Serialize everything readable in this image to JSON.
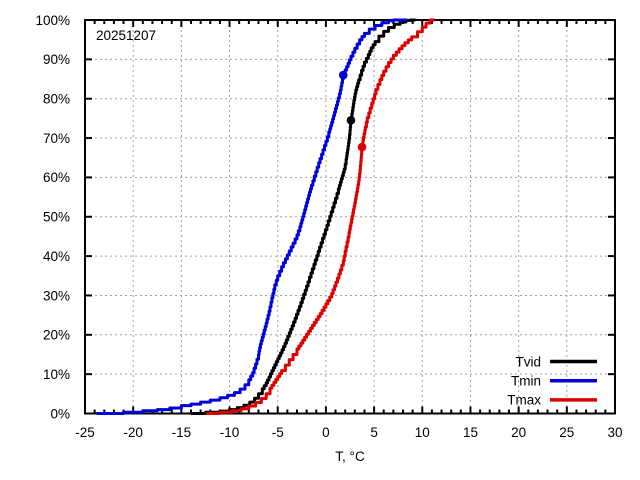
{
  "window": {
    "background": "#ffffff",
    "text_color": "#000000"
  },
  "chart_data": {
    "type": "line",
    "subtype": "empirical-cdf",
    "annotation": "20251207",
    "title": "",
    "xlabel": "T, °C",
    "ylabel": "",
    "x_axis": {
      "min": -25,
      "max": 30,
      "major_step": 5,
      "minor_step": 1,
      "tick_labels": [
        "-25",
        "-20",
        "-15",
        "-10",
        "-5",
        "0",
        "5",
        "10",
        "15",
        "20",
        "25",
        "30"
      ]
    },
    "y_axis": {
      "min": 0,
      "max": 100,
      "major_step": 10,
      "tick_labels": [
        "0%",
        "10%",
        "20%",
        "30%",
        "40%",
        "50%",
        "60%",
        "70%",
        "80%",
        "90%",
        "100%"
      ]
    },
    "grid": {
      "show": true,
      "color": "#a0a0a0",
      "dash": "2,3"
    },
    "border_color": "#000000",
    "legend": {
      "position": "bottom-right",
      "entries": [
        "Tvid",
        "Tmin",
        "Tmax"
      ]
    },
    "series": [
      {
        "name": "Tvid",
        "color": "#000000",
        "marker": {
          "t": 2.6,
          "p": 74.5
        },
        "points": [
          [
            -14,
            0
          ],
          [
            -12.5,
            0.3
          ],
          [
            -11,
            0.6
          ],
          [
            -10,
            1
          ],
          [
            -9.2,
            1.5
          ],
          [
            -8.5,
            2.1
          ],
          [
            -7.9,
            2.9
          ],
          [
            -7.4,
            3.9
          ],
          [
            -7,
            5
          ],
          [
            -6.6,
            6.3
          ],
          [
            -6.2,
            7.8
          ],
          [
            -5.9,
            9.3
          ],
          [
            -5.6,
            10.9
          ],
          [
            -5.3,
            12.4
          ],
          [
            -5,
            13.9
          ],
          [
            -4.7,
            15.4
          ],
          [
            -4.4,
            17
          ],
          [
            -4.1,
            18.7
          ],
          [
            -3.8,
            20.5
          ],
          [
            -3.5,
            22.3
          ],
          [
            -3.2,
            24.2
          ],
          [
            -2.9,
            26.2
          ],
          [
            -2.6,
            28.2
          ],
          [
            -2.3,
            30.3
          ],
          [
            -2,
            32.4
          ],
          [
            -1.7,
            34.6
          ],
          [
            -1.4,
            36.8
          ],
          [
            -1.1,
            39
          ],
          [
            -0.8,
            41.2
          ],
          [
            -0.5,
            43.4
          ],
          [
            -0.2,
            45.6
          ],
          [
            0.1,
            47.8
          ],
          [
            0.4,
            50.1
          ],
          [
            0.7,
            52.4
          ],
          [
            1,
            54.7
          ],
          [
            1.3,
            57.1
          ],
          [
            1.6,
            59.6
          ],
          [
            1.9,
            62.1
          ],
          [
            2.1,
            64.6
          ],
          [
            2.25,
            67.1
          ],
          [
            2.4,
            69.6
          ],
          [
            2.5,
            72
          ],
          [
            2.6,
            74.5
          ],
          [
            2.75,
            77
          ],
          [
            2.9,
            79.6
          ],
          [
            3.1,
            82.2
          ],
          [
            3.4,
            84.8
          ],
          [
            3.7,
            87.2
          ],
          [
            4,
            89.3
          ],
          [
            4.4,
            91.2
          ],
          [
            4.7,
            92.9
          ],
          [
            5.1,
            94.5
          ],
          [
            5.5,
            95.9
          ],
          [
            6,
            97.1
          ],
          [
            6.5,
            98.1
          ],
          [
            7.1,
            98.9
          ],
          [
            7.7,
            99.5
          ],
          [
            8.3,
            99.9
          ],
          [
            8.8,
            100
          ],
          [
            9.3,
            100
          ]
        ]
      },
      {
        "name": "Tmin",
        "color": "#0000dd",
        "marker": {
          "t": 1.8,
          "p": 86
        },
        "points": [
          [
            -23.8,
            0
          ],
          [
            -21,
            0.3
          ],
          [
            -19,
            0.7
          ],
          [
            -17.5,
            1
          ],
          [
            -16.2,
            1.4
          ],
          [
            -15,
            2
          ],
          [
            -14,
            2.4
          ],
          [
            -13,
            2.9
          ],
          [
            -12,
            3.4
          ],
          [
            -11,
            4
          ],
          [
            -10.2,
            4.6
          ],
          [
            -9.5,
            5.3
          ],
          [
            -8.9,
            6.2
          ],
          [
            -8.4,
            7.3
          ],
          [
            -8,
            8.6
          ],
          [
            -7.6,
            10.4
          ],
          [
            -7.3,
            12.6
          ],
          [
            -7,
            15
          ],
          [
            -6.8,
            17.6
          ],
          [
            -6.5,
            20.3
          ],
          [
            -6.2,
            23
          ],
          [
            -5.9,
            26
          ],
          [
            -5.6,
            29.4
          ],
          [
            -5.3,
            32.7
          ],
          [
            -5,
            35
          ],
          [
            -4.6,
            37.3
          ],
          [
            -4.2,
            39.3
          ],
          [
            -3.8,
            41.3
          ],
          [
            -3.4,
            43.3
          ],
          [
            -3,
            45.4
          ],
          [
            -2.7,
            47.5
          ],
          [
            -2.4,
            50
          ],
          [
            -2.1,
            52.7
          ],
          [
            -1.8,
            55.4
          ],
          [
            -1.5,
            58
          ],
          [
            -1.2,
            60.3
          ],
          [
            -0.9,
            62.6
          ],
          [
            -0.6,
            64.8
          ],
          [
            -0.3,
            67
          ],
          [
            0,
            69.2
          ],
          [
            0.3,
            71.5
          ],
          [
            0.6,
            74
          ],
          [
            0.9,
            76.6
          ],
          [
            1.2,
            79.3
          ],
          [
            1.5,
            82.2
          ],
          [
            1.8,
            86
          ],
          [
            2,
            87.3
          ],
          [
            2.3,
            89
          ],
          [
            2.6,
            90.8
          ],
          [
            3,
            92.8
          ],
          [
            3.5,
            95
          ],
          [
            4,
            96.6
          ],
          [
            4.5,
            97.7
          ],
          [
            5.1,
            98.6
          ],
          [
            5.8,
            99.3
          ],
          [
            6.5,
            99.8
          ],
          [
            7,
            100
          ],
          [
            8.4,
            100
          ]
        ]
      },
      {
        "name": "Tmax",
        "color": "#dd0000",
        "marker": {
          "t": 3.75,
          "p": 67.7
        },
        "points": [
          [
            -12.4,
            0
          ],
          [
            -11,
            0.3
          ],
          [
            -9.8,
            0.7
          ],
          [
            -8.8,
            1.2
          ],
          [
            -8,
            1.9
          ],
          [
            -7.3,
            2.8
          ],
          [
            -6.7,
            3.8
          ],
          [
            -6.2,
            5
          ],
          [
            -5.8,
            6.4
          ],
          [
            -5.4,
            7.9
          ],
          [
            -5,
            9.4
          ],
          [
            -4.6,
            10.9
          ],
          [
            -4.2,
            12.3
          ],
          [
            -3.8,
            13.7
          ],
          [
            -3.4,
            15
          ],
          [
            -3,
            16.4
          ],
          [
            -2.6,
            17.9
          ],
          [
            -2.2,
            19.4
          ],
          [
            -1.8,
            20.9
          ],
          [
            -1.4,
            22.4
          ],
          [
            -1,
            23.9
          ],
          [
            -0.6,
            25.4
          ],
          [
            -0.2,
            27
          ],
          [
            0.2,
            28.7
          ],
          [
            0.6,
            30.5
          ],
          [
            0.9,
            32.4
          ],
          [
            1.2,
            34.4
          ],
          [
            1.5,
            36.5
          ],
          [
            1.8,
            38.8
          ],
          [
            2,
            41.2
          ],
          [
            2.2,
            43.6
          ],
          [
            2.4,
            46
          ],
          [
            2.6,
            48.5
          ],
          [
            2.8,
            51
          ],
          [
            3,
            53.6
          ],
          [
            3.2,
            56.3
          ],
          [
            3.4,
            59.1
          ],
          [
            3.55,
            62
          ],
          [
            3.65,
            65
          ],
          [
            3.75,
            67.7
          ],
          [
            3.9,
            70.3
          ],
          [
            4.1,
            72.8
          ],
          [
            4.3,
            75.2
          ],
          [
            4.6,
            77.6
          ],
          [
            4.9,
            80
          ],
          [
            5.2,
            82.4
          ],
          [
            5.6,
            84.8
          ],
          [
            6,
            87
          ],
          [
            6.5,
            89.2
          ],
          [
            7,
            91
          ],
          [
            7.6,
            92.7
          ],
          [
            8.2,
            94.2
          ],
          [
            8.9,
            95.7
          ],
          [
            9.5,
            97
          ],
          [
            10,
            98.2
          ],
          [
            10.4,
            99.2
          ],
          [
            10.8,
            100
          ],
          [
            11.3,
            100
          ]
        ]
      }
    ]
  }
}
